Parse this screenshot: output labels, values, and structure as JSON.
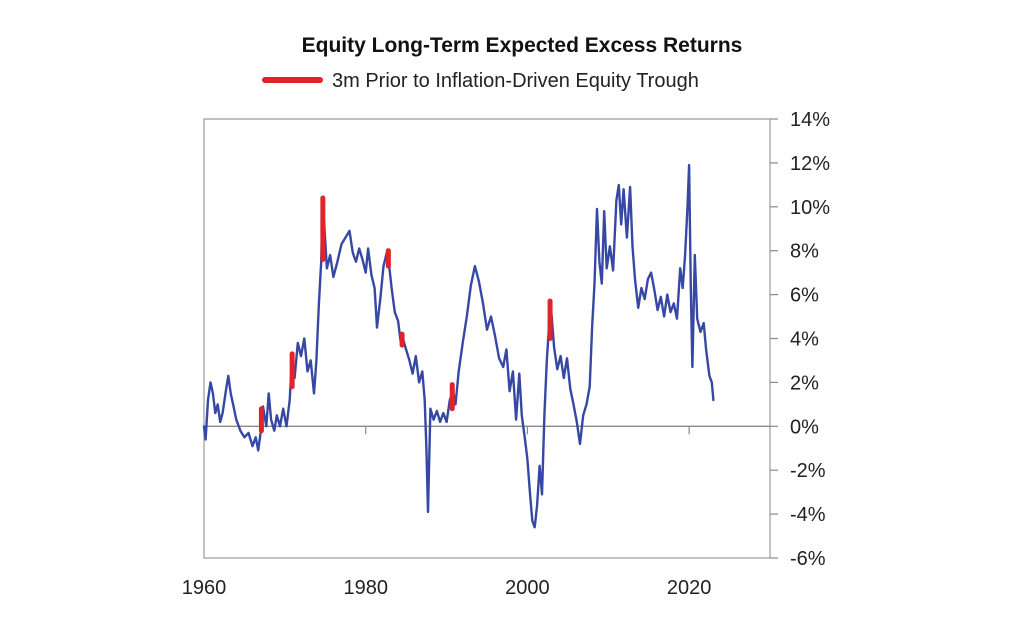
{
  "chart_data": {
    "type": "line",
    "title": "Equity Long-Term Expected Excess Returns",
    "xlabel": "",
    "ylabel": "",
    "xlim": [
      1960,
      2030
    ],
    "ylim": [
      -6,
      14
    ],
    "x_ticks": [
      {
        "value": 1960,
        "label": "1960"
      },
      {
        "value": 1980,
        "label": "1980"
      },
      {
        "value": 2000,
        "label": "2000"
      },
      {
        "value": 2020,
        "label": "2020"
      }
    ],
    "y_ticks": [
      {
        "value": 14,
        "label": "14%"
      },
      {
        "value": 12,
        "label": "12%"
      },
      {
        "value": 10,
        "label": "10%"
      },
      {
        "value": 8,
        "label": "8%"
      },
      {
        "value": 6,
        "label": "6%"
      },
      {
        "value": 4,
        "label": "4%"
      },
      {
        "value": 2,
        "label": "2%"
      },
      {
        "value": 0,
        "label": "0%"
      },
      {
        "value": -2,
        "label": "-2%"
      },
      {
        "value": -4,
        "label": "-4%"
      },
      {
        "value": -6,
        "label": "-6%"
      }
    ],
    "y_axis_side": "right",
    "grid": false,
    "zero_line": true,
    "legend": {
      "placement": "top-center",
      "entries": [
        {
          "name": "3m Prior to Inflation-Driven Equity Trough",
          "color": "#e0242b"
        }
      ]
    },
    "series": [
      {
        "name": "Equity Long-Term Expected Excess Returns",
        "color": "#3748a4",
        "points": [
          [
            1960.0,
            0.0
          ],
          [
            1960.2,
            -0.6
          ],
          [
            1960.5,
            1.2
          ],
          [
            1960.8,
            2.0
          ],
          [
            1961.1,
            1.5
          ],
          [
            1961.4,
            0.6
          ],
          [
            1961.7,
            1.0
          ],
          [
            1962.0,
            0.2
          ],
          [
            1962.3,
            0.6
          ],
          [
            1962.7,
            1.6
          ],
          [
            1963.0,
            2.3
          ],
          [
            1963.3,
            1.5
          ],
          [
            1963.6,
            1.0
          ],
          [
            1964.0,
            0.3
          ],
          [
            1964.5,
            -0.2
          ],
          [
            1965.0,
            -0.5
          ],
          [
            1965.5,
            -0.3
          ],
          [
            1966.0,
            -0.9
          ],
          [
            1966.4,
            -0.5
          ],
          [
            1966.7,
            -1.1
          ],
          [
            1967.0,
            -0.3
          ],
          [
            1967.3,
            0.9
          ],
          [
            1967.7,
            0.0
          ],
          [
            1968.0,
            1.5
          ],
          [
            1968.3,
            0.3
          ],
          [
            1968.7,
            -0.2
          ],
          [
            1969.0,
            0.5
          ],
          [
            1969.4,
            0.0
          ],
          [
            1969.8,
            0.8
          ],
          [
            1970.2,
            0.0
          ],
          [
            1970.6,
            1.2
          ],
          [
            1970.9,
            3.2
          ],
          [
            1971.2,
            2.2
          ],
          [
            1971.6,
            3.8
          ],
          [
            1972.0,
            3.2
          ],
          [
            1972.4,
            4.0
          ],
          [
            1972.8,
            2.5
          ],
          [
            1973.2,
            3.0
          ],
          [
            1973.6,
            1.5
          ],
          [
            1973.9,
            3.0
          ],
          [
            1974.2,
            5.5
          ],
          [
            1974.5,
            7.5
          ],
          [
            1974.7,
            10.3
          ],
          [
            1974.9,
            9.0
          ],
          [
            1975.2,
            7.2
          ],
          [
            1975.6,
            7.8
          ],
          [
            1976.0,
            6.8
          ],
          [
            1976.5,
            7.5
          ],
          [
            1977.0,
            8.3
          ],
          [
            1977.5,
            8.6
          ],
          [
            1978.0,
            8.9
          ],
          [
            1978.4,
            7.9
          ],
          [
            1978.8,
            7.5
          ],
          [
            1979.2,
            8.1
          ],
          [
            1979.6,
            7.6
          ],
          [
            1980.0,
            7.0
          ],
          [
            1980.3,
            8.1
          ],
          [
            1980.7,
            6.9
          ],
          [
            1981.1,
            6.3
          ],
          [
            1981.4,
            4.5
          ],
          [
            1981.8,
            5.8
          ],
          [
            1982.2,
            7.3
          ],
          [
            1982.6,
            7.9
          ],
          [
            1982.9,
            7.3
          ],
          [
            1983.2,
            6.3
          ],
          [
            1983.6,
            5.2
          ],
          [
            1984.0,
            4.8
          ],
          [
            1984.3,
            3.9
          ],
          [
            1984.6,
            4.0
          ],
          [
            1985.0,
            3.5
          ],
          [
            1985.4,
            3.0
          ],
          [
            1985.8,
            2.4
          ],
          [
            1986.2,
            3.2
          ],
          [
            1986.6,
            2.0
          ],
          [
            1987.0,
            2.5
          ],
          [
            1987.3,
            1.2
          ],
          [
            1987.5,
            -1.0
          ],
          [
            1987.7,
            -3.9
          ],
          [
            1988.0,
            0.8
          ],
          [
            1988.4,
            0.3
          ],
          [
            1988.8,
            0.7
          ],
          [
            1989.2,
            0.2
          ],
          [
            1989.6,
            0.6
          ],
          [
            1990.0,
            0.2
          ],
          [
            1990.4,
            1.2
          ],
          [
            1990.8,
            1.6
          ],
          [
            1991.1,
            1.0
          ],
          [
            1991.5,
            2.5
          ],
          [
            1992.0,
            3.8
          ],
          [
            1992.5,
            5.0
          ],
          [
            1993.0,
            6.4
          ],
          [
            1993.5,
            7.3
          ],
          [
            1994.0,
            6.6
          ],
          [
            1994.5,
            5.6
          ],
          [
            1995.0,
            4.4
          ],
          [
            1995.5,
            5.0
          ],
          [
            1996.0,
            4.1
          ],
          [
            1996.5,
            3.1
          ],
          [
            1997.0,
            2.7
          ],
          [
            1997.4,
            3.5
          ],
          [
            1997.8,
            1.6
          ],
          [
            1998.2,
            2.5
          ],
          [
            1998.6,
            0.3
          ],
          [
            1999.0,
            2.4
          ],
          [
            1999.3,
            0.5
          ],
          [
            1999.7,
            -0.6
          ],
          [
            2000.0,
            -1.5
          ],
          [
            2000.3,
            -3.0
          ],
          [
            2000.6,
            -4.3
          ],
          [
            2000.9,
            -4.6
          ],
          [
            2001.2,
            -3.6
          ],
          [
            2001.5,
            -1.8
          ],
          [
            2001.8,
            -3.1
          ],
          [
            2002.1,
            0.5
          ],
          [
            2002.4,
            3.0
          ],
          [
            2002.6,
            4.2
          ],
          [
            2002.8,
            5.6
          ],
          [
            2003.0,
            5.0
          ],
          [
            2003.3,
            3.6
          ],
          [
            2003.7,
            2.6
          ],
          [
            2004.1,
            3.2
          ],
          [
            2004.5,
            2.2
          ],
          [
            2004.9,
            3.1
          ],
          [
            2005.3,
            1.7
          ],
          [
            2005.7,
            1.0
          ],
          [
            2006.1,
            0.2
          ],
          [
            2006.5,
            -0.8
          ],
          [
            2006.9,
            0.5
          ],
          [
            2007.3,
            1.0
          ],
          [
            2007.7,
            1.8
          ],
          [
            2008.0,
            4.5
          ],
          [
            2008.3,
            6.5
          ],
          [
            2008.6,
            9.9
          ],
          [
            2008.9,
            7.5
          ],
          [
            2009.2,
            6.5
          ],
          [
            2009.5,
            9.8
          ],
          [
            2009.8,
            7.2
          ],
          [
            2010.2,
            8.2
          ],
          [
            2010.6,
            7.1
          ],
          [
            2011.0,
            10.3
          ],
          [
            2011.3,
            11.0
          ],
          [
            2011.6,
            9.2
          ],
          [
            2011.9,
            10.8
          ],
          [
            2012.3,
            8.6
          ],
          [
            2012.7,
            10.9
          ],
          [
            2013.0,
            8.2
          ],
          [
            2013.3,
            6.7
          ],
          [
            2013.7,
            5.4
          ],
          [
            2014.1,
            6.3
          ],
          [
            2014.5,
            5.8
          ],
          [
            2014.9,
            6.7
          ],
          [
            2015.3,
            7.0
          ],
          [
            2015.7,
            6.2
          ],
          [
            2016.1,
            5.3
          ],
          [
            2016.5,
            5.9
          ],
          [
            2016.9,
            5.0
          ],
          [
            2017.3,
            6.0
          ],
          [
            2017.7,
            5.2
          ],
          [
            2018.1,
            5.6
          ],
          [
            2018.5,
            4.9
          ],
          [
            2018.9,
            7.2
          ],
          [
            2019.2,
            6.3
          ],
          [
            2019.5,
            7.8
          ],
          [
            2019.8,
            10.0
          ],
          [
            2020.0,
            11.9
          ],
          [
            2020.2,
            6.3
          ],
          [
            2020.4,
            2.7
          ],
          [
            2020.7,
            7.8
          ],
          [
            2021.0,
            4.9
          ],
          [
            2021.4,
            4.3
          ],
          [
            2021.8,
            4.7
          ],
          [
            2022.1,
            3.5
          ],
          [
            2022.5,
            2.3
          ],
          [
            2022.8,
            2.0
          ],
          [
            2023.0,
            1.2
          ]
        ]
      }
    ],
    "highlights": [
      {
        "name": "3m Prior to Inflation-Driven Equity Trough",
        "color": "#e0242b",
        "x": 1967.1,
        "y_range": [
          -0.2,
          0.8
        ]
      },
      {
        "name": "3m Prior to Inflation-Driven Equity Trough",
        "color": "#e0242b",
        "x": 1970.9,
        "y_range": [
          1.8,
          3.3
        ]
      },
      {
        "name": "3m Prior to Inflation-Driven Equity Trough",
        "color": "#e0242b",
        "x": 1974.7,
        "y_range": [
          7.6,
          10.4
        ]
      },
      {
        "name": "3m Prior to Inflation-Driven Equity Trough",
        "color": "#e0242b",
        "x": 1982.8,
        "y_range": [
          7.3,
          8.0
        ]
      },
      {
        "name": "3m Prior to Inflation-Driven Equity Trough",
        "color": "#e0242b",
        "x": 1984.5,
        "y_range": [
          3.7,
          4.2
        ]
      },
      {
        "name": "3m Prior to Inflation-Driven Equity Trough",
        "color": "#e0242b",
        "x": 1990.7,
        "y_range": [
          0.8,
          1.9
        ]
      },
      {
        "name": "3m Prior to Inflation-Driven Equity Trough",
        "color": "#e0242b",
        "x": 2002.8,
        "y_range": [
          4.0,
          5.7
        ]
      }
    ]
  }
}
